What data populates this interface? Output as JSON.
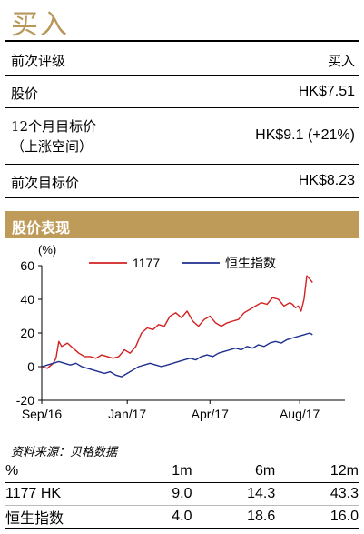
{
  "header": {
    "rating": "买入"
  },
  "info_rows": [
    {
      "label": "前次评级",
      "value": "买入"
    },
    {
      "label": "股价",
      "value": "HK$7.51"
    },
    {
      "label": "12个月目标价",
      "label2": "（上涨空间）",
      "value": "HK$9.1 (+21%)"
    },
    {
      "label": "前次目标价",
      "value": "HK$8.23"
    }
  ],
  "section_title": "股价表现",
  "colors": {
    "accent": "#bf9b5a",
    "series_1177": "#d32020",
    "series_hsi": "#1f2f8f"
  },
  "chart_data": {
    "type": "line",
    "ylabel": "(%)",
    "ylim": [
      -20,
      60
    ],
    "yticks": [
      "60",
      "40",
      "20",
      "0",
      "-20"
    ],
    "ytick_values": [
      60,
      40,
      20,
      0,
      -20
    ],
    "xticks": [
      "Sep/16",
      "Jan/17",
      "Apr/17",
      "Aug/17"
    ],
    "xtick_positions": [
      0,
      0.3,
      0.59,
      0.905
    ],
    "legend_position": "top",
    "series": [
      {
        "name": "1177",
        "x": [
          0,
          0.02,
          0.04,
          0.05,
          0.06,
          0.07,
          0.09,
          0.11,
          0.13,
          0.15,
          0.17,
          0.19,
          0.21,
          0.23,
          0.25,
          0.27,
          0.29,
          0.31,
          0.33,
          0.35,
          0.37,
          0.39,
          0.41,
          0.43,
          0.45,
          0.47,
          0.49,
          0.51,
          0.53,
          0.55,
          0.57,
          0.59,
          0.61,
          0.63,
          0.65,
          0.67,
          0.69,
          0.71,
          0.73,
          0.75,
          0.77,
          0.79,
          0.81,
          0.83,
          0.85,
          0.87,
          0.88,
          0.89,
          0.9,
          0.91,
          0.92,
          0.93,
          0.94,
          0.95
        ],
        "values": [
          0,
          -1,
          2,
          5,
          15,
          12,
          14,
          11,
          8,
          6,
          6,
          5,
          7,
          6,
          5,
          6,
          10,
          8,
          12,
          20,
          23,
          22,
          25,
          24,
          30,
          32,
          29,
          33,
          27,
          24,
          28,
          30,
          26,
          24,
          26,
          27,
          28,
          32,
          34,
          36,
          38,
          37,
          41,
          40,
          36,
          38,
          37,
          35,
          36,
          33,
          40,
          54,
          52,
          50
        ]
      },
      {
        "name": "恒生指数",
        "x": [
          0,
          0.02,
          0.04,
          0.06,
          0.08,
          0.1,
          0.12,
          0.14,
          0.16,
          0.18,
          0.2,
          0.22,
          0.24,
          0.26,
          0.28,
          0.3,
          0.32,
          0.34,
          0.36,
          0.38,
          0.4,
          0.42,
          0.44,
          0.46,
          0.48,
          0.5,
          0.52,
          0.54,
          0.56,
          0.58,
          0.6,
          0.62,
          0.64,
          0.66,
          0.68,
          0.7,
          0.72,
          0.74,
          0.76,
          0.78,
          0.8,
          0.82,
          0.84,
          0.86,
          0.88,
          0.9,
          0.92,
          0.94,
          0.95
        ],
        "values": [
          0,
          1,
          2,
          3,
          2,
          1,
          2,
          0,
          -1,
          -2,
          -3,
          -4,
          -3,
          -5,
          -6,
          -4,
          -2,
          0,
          1,
          2,
          1,
          0,
          1,
          2,
          3,
          4,
          5,
          4,
          6,
          7,
          6,
          8,
          9,
          10,
          11,
          10,
          12,
          11,
          13,
          12,
          14,
          15,
          14,
          16,
          17,
          18,
          19,
          20,
          19
        ]
      }
    ]
  },
  "source": "资料来源：贝格数据",
  "performance": {
    "headers": [
      "%",
      "1m",
      "6m",
      "12m"
    ],
    "rows": [
      [
        "1177 HK",
        "9.0",
        "14.3",
        "43.3"
      ],
      [
        "恒生指数",
        "4.0",
        "18.6",
        "16.0"
      ]
    ]
  }
}
